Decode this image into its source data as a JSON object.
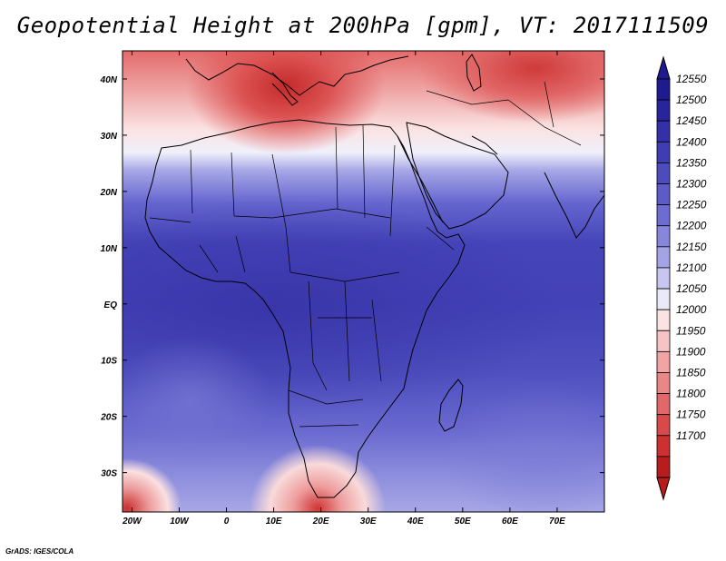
{
  "title": "Geopotential Height at 200hPa [gpm], VT: 2017111509",
  "credit": "GrADS: IGES/COLA",
  "lat_ticks": [
    "40N",
    "30N",
    "20N",
    "10N",
    "EQ",
    "10S",
    "20S",
    "30S"
  ],
  "lon_ticks": [
    "20W",
    "10W",
    "0",
    "10E",
    "20E",
    "30E",
    "40E",
    "50E",
    "60E",
    "70E"
  ],
  "colorbar": {
    "labels": [
      "12550",
      "12500",
      "12450",
      "12400",
      "12350",
      "12300",
      "12250",
      "12200",
      "12150",
      "12100",
      "12050",
      "12000",
      "11950",
      "11900",
      "11850",
      "11800",
      "11750",
      "11700"
    ],
    "colors": [
      "#1e1b8f",
      "#27249c",
      "#3330a8",
      "#3e3db3",
      "#4d4cbd",
      "#5c5bc7",
      "#6d6dd1",
      "#8686dc",
      "#a3a3e6",
      "#c6c6f0",
      "#e9e9fa",
      "#fbe3e3",
      "#f6c4c4",
      "#f0a4a4",
      "#e98686",
      "#e16868",
      "#d84a4a",
      "#cc3030",
      "#b71d1d"
    ],
    "arrow_top_color": "#1e1b8f",
    "arrow_bottom_color": "#b71d1d"
  },
  "chart_data": {
    "type": "heatmap",
    "title": "Geopotential Height at 200hPa [gpm], VT: 2017111509",
    "variable": "Geopotential Height",
    "level": "200hPa",
    "units": "gpm",
    "valid_time": "2017111509",
    "lon_range": [
      -22,
      80
    ],
    "lat_range": [
      -37,
      45
    ],
    "contour_interval": 50,
    "value_range": [
      11700,
      12550
    ],
    "features": [
      {
        "name": "upper trough (low)",
        "lon": 13,
        "lat": 40,
        "approx_value": 11750
      },
      {
        "name": "ridge (high)",
        "lon": 35,
        "lat": 5,
        "approx_value": 12450
      },
      {
        "name": "trough south of Africa",
        "lon": 22,
        "lat": -35,
        "approx_value": 11800
      },
      {
        "name": "trough SW corner",
        "lon": -21,
        "lat": -36,
        "approx_value": 11800
      }
    ]
  }
}
